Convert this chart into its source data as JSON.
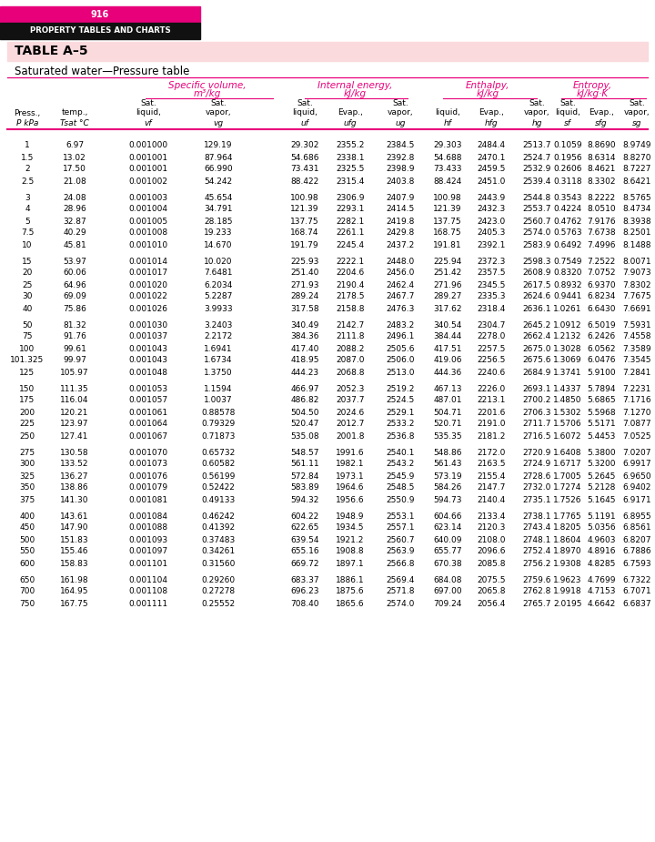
{
  "page_num": "916",
  "header_text": "PROPERTY TABLES AND CHARTS",
  "table_name": "TABLE A–5",
  "subtitle": "Saturated water—Pressure table",
  "magenta": "#e8007a",
  "dark_header_bg": "#111111",
  "pink_bg": "#fadadd",
  "rows": [
    [
      1.0,
      6.97,
      0.001,
      129.19,
      29.302,
      2355.2,
      2384.5,
      29.303,
      2484.4,
      2513.7,
      0.1059,
      8.869,
      8.9749
    ],
    [
      1.5,
      13.02,
      0.001001,
      87.964,
      54.686,
      2338.1,
      2392.8,
      54.688,
      2470.1,
      2524.7,
      0.1956,
      8.6314,
      8.827
    ],
    [
      2.0,
      17.5,
      0.001001,
      66.99,
      73.431,
      2325.5,
      2398.9,
      73.433,
      2459.5,
      2532.9,
      0.2606,
      8.4621,
      8.7227
    ],
    [
      2.5,
      21.08,
      0.001002,
      54.242,
      88.422,
      2315.4,
      2403.8,
      88.424,
      2451.0,
      2539.4,
      0.3118,
      8.3302,
      8.6421
    ],
    [
      3.0,
      24.08,
      0.001003,
      45.654,
      100.98,
      2306.9,
      2407.9,
      100.98,
      2443.9,
      2544.8,
      0.3543,
      8.2222,
      8.5765
    ],
    [
      4.0,
      28.96,
      0.001004,
      34.791,
      121.39,
      2293.1,
      2414.5,
      121.39,
      2432.3,
      2553.7,
      0.4224,
      8.051,
      8.4734
    ],
    [
      5.0,
      32.87,
      0.001005,
      28.185,
      137.75,
      2282.1,
      2419.8,
      137.75,
      2423.0,
      2560.7,
      0.4762,
      7.9176,
      8.3938
    ],
    [
      7.5,
      40.29,
      0.001008,
      19.233,
      168.74,
      2261.1,
      2429.8,
      168.75,
      2405.3,
      2574.0,
      0.5763,
      7.6738,
      8.2501
    ],
    [
      10,
      45.81,
      0.00101,
      14.67,
      191.79,
      2245.4,
      2437.2,
      191.81,
      2392.1,
      2583.9,
      0.6492,
      7.4996,
      8.1488
    ],
    [
      15,
      53.97,
      0.001014,
      10.02,
      225.93,
      2222.1,
      2448.0,
      225.94,
      2372.3,
      2598.3,
      0.7549,
      7.2522,
      8.0071
    ],
    [
      20,
      60.06,
      0.001017,
      7.6481,
      251.4,
      2204.6,
      2456.0,
      251.42,
      2357.5,
      2608.9,
      0.832,
      7.0752,
      7.9073
    ],
    [
      25,
      64.96,
      0.00102,
      6.2034,
      271.93,
      2190.4,
      2462.4,
      271.96,
      2345.5,
      2617.5,
      0.8932,
      6.937,
      7.8302
    ],
    [
      30,
      69.09,
      0.001022,
      5.2287,
      289.24,
      2178.5,
      2467.7,
      289.27,
      2335.3,
      2624.6,
      0.9441,
      6.8234,
      7.7675
    ],
    [
      40,
      75.86,
      0.001026,
      3.9933,
      317.58,
      2158.8,
      2476.3,
      317.62,
      2318.4,
      2636.1,
      1.0261,
      6.643,
      7.6691
    ],
    [
      50,
      81.32,
      0.00103,
      3.2403,
      340.49,
      2142.7,
      2483.2,
      340.54,
      2304.7,
      2645.2,
      1.0912,
      6.5019,
      7.5931
    ],
    [
      75,
      91.76,
      0.001037,
      2.2172,
      384.36,
      2111.8,
      2496.1,
      384.44,
      2278.0,
      2662.4,
      1.2132,
      6.2426,
      7.4558
    ],
    [
      100,
      99.61,
      0.001043,
      1.6941,
      417.4,
      2088.2,
      2505.6,
      417.51,
      2257.5,
      2675.0,
      1.3028,
      6.0562,
      7.3589
    ],
    [
      101.325,
      99.97,
      0.001043,
      1.6734,
      418.95,
      2087.0,
      2506.0,
      419.06,
      2256.5,
      2675.6,
      1.3069,
      6.0476,
      7.3545
    ],
    [
      125,
      105.97,
      0.001048,
      1.375,
      444.23,
      2068.8,
      2513.0,
      444.36,
      2240.6,
      2684.9,
      1.3741,
      5.91,
      7.2841
    ],
    [
      150,
      111.35,
      0.001053,
      1.1594,
      466.97,
      2052.3,
      2519.2,
      467.13,
      2226.0,
      2693.1,
      1.4337,
      5.7894,
      7.2231
    ],
    [
      175,
      116.04,
      0.001057,
      1.0037,
      486.82,
      2037.7,
      2524.5,
      487.01,
      2213.1,
      2700.2,
      1.485,
      5.6865,
      7.1716
    ],
    [
      200,
      120.21,
      0.001061,
      0.88578,
      504.5,
      2024.6,
      2529.1,
      504.71,
      2201.6,
      2706.3,
      1.5302,
      5.5968,
      7.127
    ],
    [
      225,
      123.97,
      0.001064,
      0.79329,
      520.47,
      2012.7,
      2533.2,
      520.71,
      2191.0,
      2711.7,
      1.5706,
      5.5171,
      7.0877
    ],
    [
      250,
      127.41,
      0.001067,
      0.71873,
      535.08,
      2001.8,
      2536.8,
      535.35,
      2181.2,
      2716.5,
      1.6072,
      5.4453,
      7.0525
    ],
    [
      275,
      130.58,
      0.00107,
      0.65732,
      548.57,
      1991.6,
      2540.1,
      548.86,
      2172.0,
      2720.9,
      1.6408,
      5.38,
      7.0207
    ],
    [
      300,
      133.52,
      0.001073,
      0.60582,
      561.11,
      1982.1,
      2543.2,
      561.43,
      2163.5,
      2724.9,
      1.6717,
      5.32,
      6.9917
    ],
    [
      325,
      136.27,
      0.001076,
      0.56199,
      572.84,
      1973.1,
      2545.9,
      573.19,
      2155.4,
      2728.6,
      1.7005,
      5.2645,
      6.965
    ],
    [
      350,
      138.86,
      0.001079,
      0.52422,
      583.89,
      1964.6,
      2548.5,
      584.26,
      2147.7,
      2732.0,
      1.7274,
      5.2128,
      6.9402
    ],
    [
      375,
      141.3,
      0.001081,
      0.49133,
      594.32,
      1956.6,
      2550.9,
      594.73,
      2140.4,
      2735.1,
      1.7526,
      5.1645,
      6.9171
    ],
    [
      400,
      143.61,
      0.001084,
      0.46242,
      604.22,
      1948.9,
      2553.1,
      604.66,
      2133.4,
      2738.1,
      1.7765,
      5.1191,
      6.8955
    ],
    [
      450,
      147.9,
      0.001088,
      0.41392,
      622.65,
      1934.5,
      2557.1,
      623.14,
      2120.3,
      2743.4,
      1.8205,
      5.0356,
      6.8561
    ],
    [
      500,
      151.83,
      0.001093,
      0.37483,
      639.54,
      1921.2,
      2560.7,
      640.09,
      2108.0,
      2748.1,
      1.8604,
      4.9603,
      6.8207
    ],
    [
      550,
      155.46,
      0.001097,
      0.34261,
      655.16,
      1908.8,
      2563.9,
      655.77,
      2096.6,
      2752.4,
      1.897,
      4.8916,
      6.7886
    ],
    [
      600,
      158.83,
      0.001101,
      0.3156,
      669.72,
      1897.1,
      2566.8,
      670.38,
      2085.8,
      2756.2,
      1.9308,
      4.8285,
      6.7593
    ],
    [
      650,
      161.98,
      0.001104,
      0.2926,
      683.37,
      1886.1,
      2569.4,
      684.08,
      2075.5,
      2759.6,
      1.9623,
      4.7699,
      6.7322
    ],
    [
      700,
      164.95,
      0.001108,
      0.27278,
      696.23,
      1875.6,
      2571.8,
      697.0,
      2065.8,
      2762.8,
      1.9918,
      4.7153,
      6.7071
    ],
    [
      750,
      167.75,
      0.001111,
      0.25552,
      708.4,
      1865.6,
      2574.0,
      709.24,
      2056.4,
      2765.7,
      2.0195,
      4.6642,
      6.6837
    ]
  ],
  "group_separators_after": [
    4,
    9,
    14,
    19,
    24,
    29,
    34
  ]
}
